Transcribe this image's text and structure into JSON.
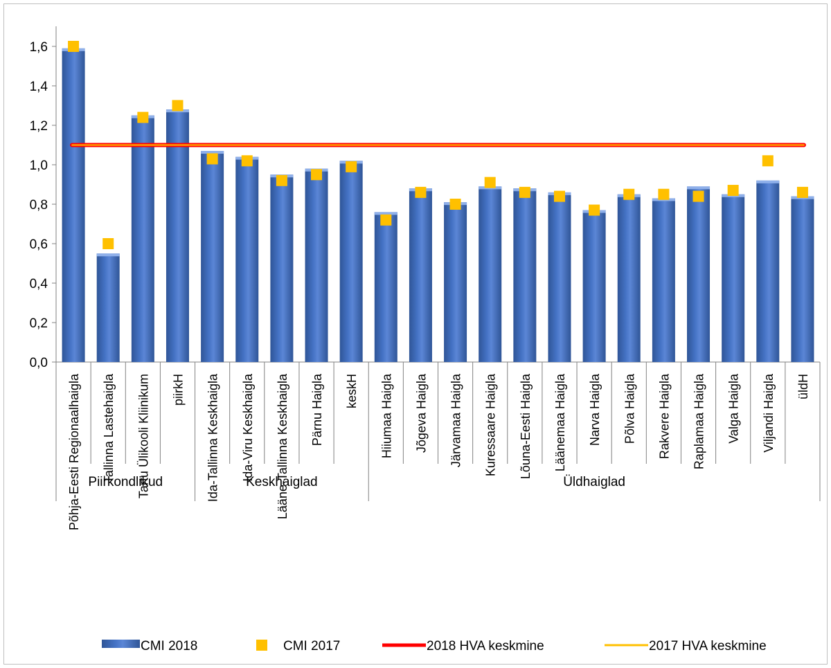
{
  "chart_data": {
    "type": "bar",
    "categories": [
      "Põhja-Eesti Regionaalhaigla",
      "Tallinna Lastehaigla",
      "Tartu Ülikooli Kliinikum",
      "piirkH",
      "Ida-Tallinna Keskhaigla",
      "Ida-Viru Keskhaigla",
      "Lääne-Tallinna Keskhaigla",
      "Pärnu Haigla",
      "keskH",
      "Hiiumaa Haigla",
      "Jõgeva Haigla",
      "Järvamaa Haigla",
      "Kuressaare Haigla",
      "Lõuna-Eesti Haigla",
      "Läänemaa Haigla",
      "Narva Haigla",
      "Põlva Haigla",
      "Rakvere Haigla",
      "Raplamaa Haigla",
      "Valga Haigla",
      "Viljandi Haigla",
      "üldH"
    ],
    "groups": [
      {
        "label": "Piirkondlikud",
        "start": 0,
        "end": 3
      },
      {
        "label": "Keskhaiglad",
        "start": 4,
        "end": 8
      },
      {
        "label": "Üldhaiglad",
        "start": 9,
        "end": 21
      }
    ],
    "series": [
      {
        "name": "CMI 2018",
        "kind": "bar",
        "color": "#4472c4",
        "values": [
          1.59,
          0.55,
          1.25,
          1.28,
          1.07,
          1.04,
          0.95,
          0.98,
          1.02,
          0.76,
          0.88,
          0.81,
          0.89,
          0.88,
          0.86,
          0.77,
          0.85,
          0.83,
          0.89,
          0.85,
          0.92,
          0.84
        ]
      },
      {
        "name": "CMI 2017",
        "kind": "marker",
        "color": "#ffc000",
        "values": [
          1.6,
          0.6,
          1.24,
          1.3,
          1.03,
          1.02,
          0.92,
          0.95,
          0.99,
          0.72,
          0.86,
          0.8,
          0.91,
          0.86,
          0.84,
          0.77,
          0.85,
          0.85,
          0.84,
          0.87,
          1.02,
          0.86
        ]
      },
      {
        "name": "2018 HVA keskmine",
        "kind": "line",
        "color": "#ff0000",
        "value": 1.1
      },
      {
        "name": "2017 HVA keskmine",
        "kind": "line",
        "color": "#ffc000",
        "value": 1.1
      }
    ],
    "yticks": [
      "0,0",
      "0,2",
      "0,4",
      "0,6",
      "0,8",
      "1,0",
      "1,2",
      "1,4",
      "1,6"
    ],
    "ylim": [
      0,
      1.7
    ],
    "grid": false,
    "legend_position": "bottom"
  }
}
